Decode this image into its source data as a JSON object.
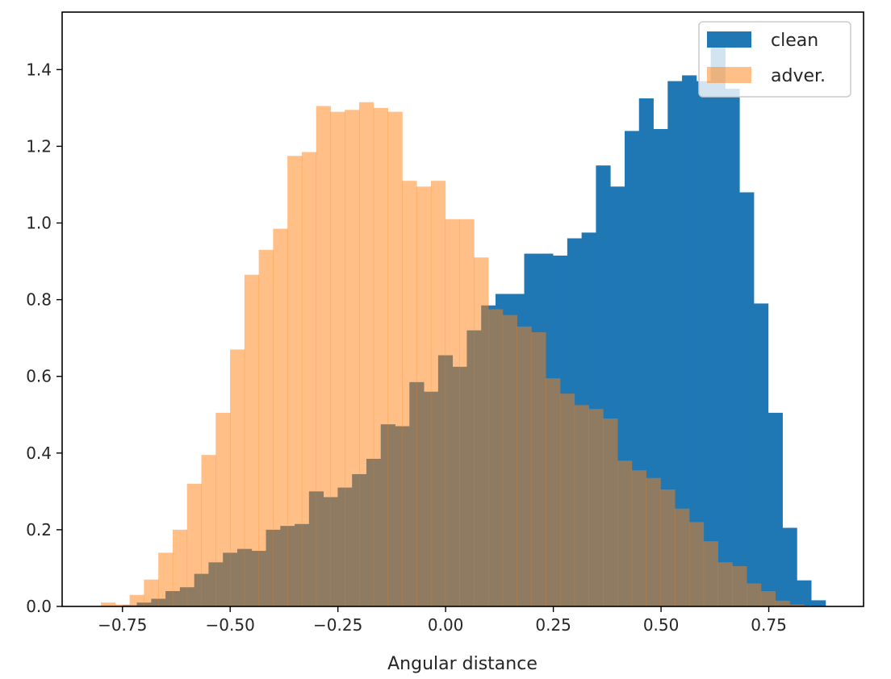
{
  "chart_data": {
    "type": "histogram",
    "title": "",
    "xlabel": "Angular distance",
    "ylabel": "",
    "xlim": [
      -0.89,
      0.97
    ],
    "ylim": [
      0,
      1.55
    ],
    "x_ticks": [
      -0.75,
      -0.5,
      -0.25,
      0.0,
      0.25,
      0.5,
      0.75
    ],
    "x_tick_labels": [
      "−0.75",
      "−0.50",
      "−0.25",
      "0.00",
      "0.25",
      "0.50",
      "0.75"
    ],
    "y_ticks": [
      0.0,
      0.2,
      0.4,
      0.6,
      0.8,
      1.0,
      1.2,
      1.4
    ],
    "y_tick_labels": [
      "0.0",
      "0.2",
      "0.4",
      "0.6",
      "0.8",
      "1.0",
      "1.2",
      "1.4"
    ],
    "legend": {
      "placement": "top-right"
    },
    "grid": false,
    "series": [
      {
        "name": "clean",
        "color": "#1f77b4",
        "opacity": 1.0,
        "bin_start": -0.75,
        "bin_width": 0.0333,
        "values": [
          0.003,
          0.01,
          0.02,
          0.04,
          0.05,
          0.085,
          0.115,
          0.14,
          0.15,
          0.145,
          0.2,
          0.21,
          0.215,
          0.3,
          0.285,
          0.31,
          0.345,
          0.385,
          0.475,
          0.47,
          0.585,
          0.56,
          0.655,
          0.625,
          0.72,
          0.785,
          0.815,
          0.815,
          0.92,
          0.92,
          0.915,
          0.96,
          0.975,
          1.15,
          1.095,
          1.24,
          1.325,
          1.245,
          1.37,
          1.385,
          1.37,
          1.46,
          1.35,
          1.08,
          0.79,
          0.505,
          0.205,
          0.068,
          0.016
        ]
      },
      {
        "name": "adver.",
        "color": "#ff7f0e",
        "opacity": 0.5,
        "bin_start": -0.8,
        "bin_width": 0.0333,
        "values": [
          0.01,
          0.005,
          0.03,
          0.07,
          0.14,
          0.2,
          0.32,
          0.395,
          0.505,
          0.67,
          0.865,
          0.93,
          0.985,
          1.175,
          1.185,
          1.305,
          1.29,
          1.295,
          1.315,
          1.3,
          1.29,
          1.11,
          1.095,
          1.11,
          1.01,
          1.01,
          0.91,
          0.775,
          0.76,
          0.73,
          0.715,
          0.595,
          0.555,
          0.525,
          0.515,
          0.49,
          0.38,
          0.355,
          0.335,
          0.305,
          0.255,
          0.22,
          0.17,
          0.115,
          0.105,
          0.06,
          0.04,
          0.015,
          0.005,
          0.002
        ]
      }
    ]
  }
}
